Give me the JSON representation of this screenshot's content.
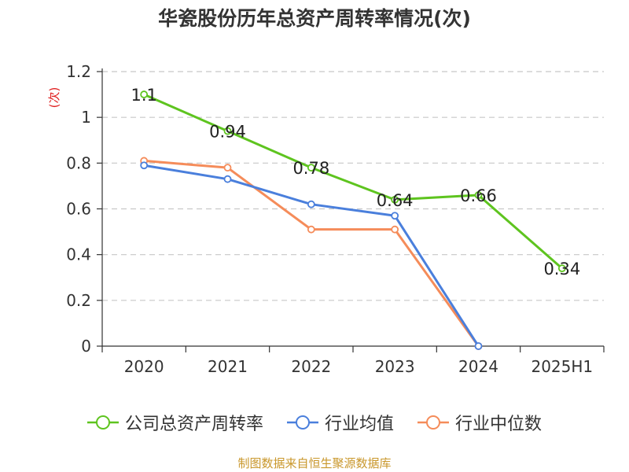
{
  "page": {
    "title": "华瓷股份历年总资产周转率情况(次)",
    "source": "制图数据来自恒生聚源数据库"
  },
  "chart_data": {
    "type": "line",
    "title": "华瓷股份历年总资产周转率情况(次)",
    "ylabel": "(次)",
    "xlabel": "",
    "categories": [
      "2020",
      "2021",
      "2022",
      "2023",
      "2024",
      "2025H1"
    ],
    "ylim": [
      0,
      1.2
    ],
    "yticks": [
      0,
      0.2,
      0.4,
      0.6,
      0.8,
      1,
      1.2
    ],
    "ytick_labels": [
      "0",
      "0.2",
      "0.4",
      "0.6",
      "0.8",
      "1",
      "1.2"
    ],
    "grid": true,
    "legend_position": "bottom",
    "series": [
      {
        "name": "公司总资产周转率",
        "color": "#5ec41f",
        "values": [
          1.1,
          0.94,
          0.78,
          0.64,
          0.66,
          0.34
        ],
        "labels": [
          "1.1",
          "0.94",
          "0.78",
          "0.64",
          "0.66",
          "0.34"
        ]
      },
      {
        "name": "行业均值",
        "color": "#4a7fdc",
        "values": [
          0.79,
          0.73,
          0.62,
          0.57,
          0,
          null
        ]
      },
      {
        "name": "行业中位数",
        "color": "#f58c5a",
        "values": [
          0.81,
          0.78,
          0.51,
          0.51,
          0,
          null
        ]
      }
    ],
    "ylabel_color": "#e02020"
  }
}
